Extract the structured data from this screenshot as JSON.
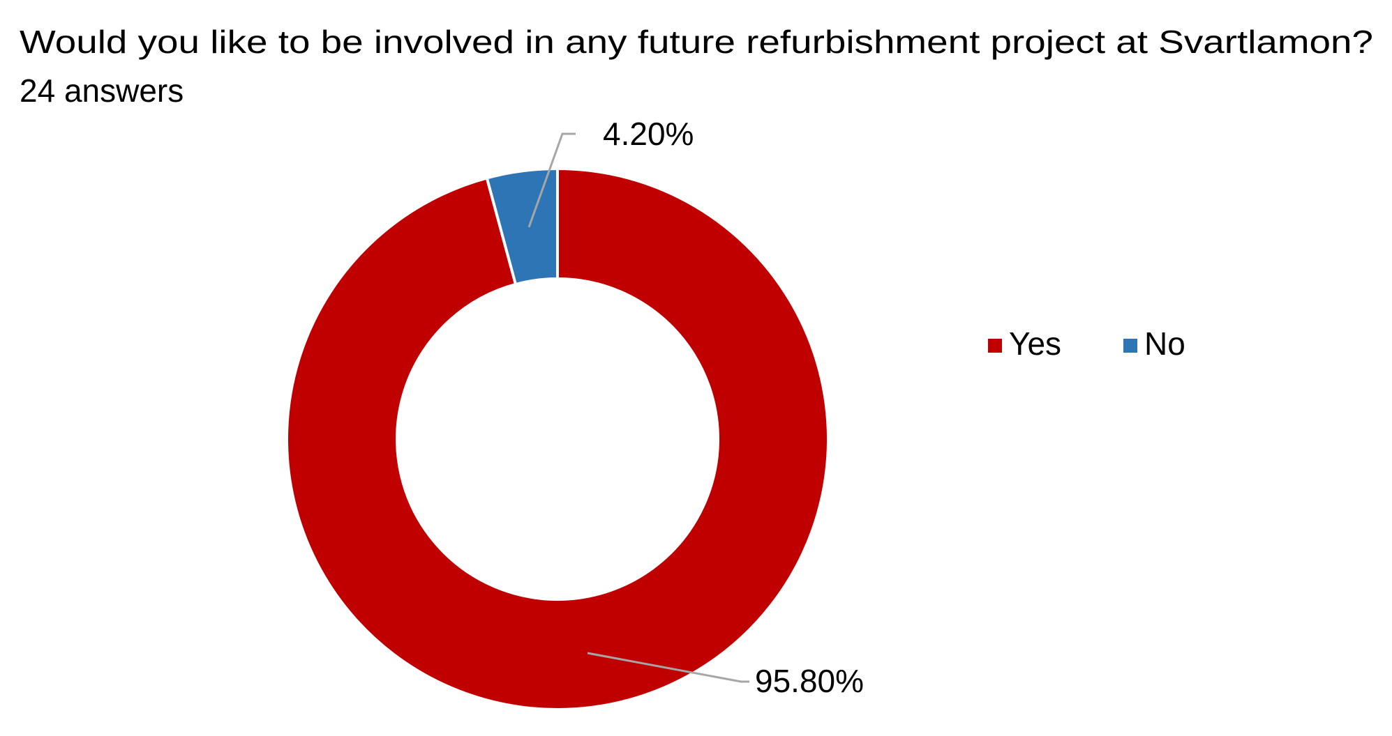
{
  "chart_data": {
    "type": "donut",
    "title": "Would you like to be involved in any future refurbishment project at Svartlamon?",
    "subtitle": "24 answers",
    "categories": [
      "Yes",
      "No"
    ],
    "values": [
      95.8,
      4.2
    ],
    "value_labels": [
      "95.80%",
      "4.20%"
    ],
    "colors": [
      "#c00000",
      "#2e75b6"
    ],
    "legend": "right"
  }
}
